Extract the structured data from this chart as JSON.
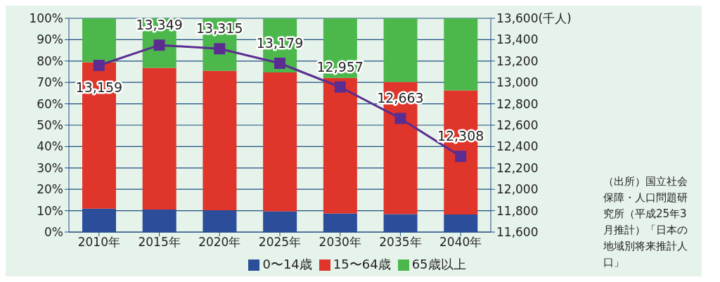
{
  "chart_data": {
    "type": "bar",
    "stacked": true,
    "categories": [
      "2010年",
      "2015年",
      "2020年",
      "2025年",
      "2030年",
      "2035年",
      "2040年"
    ],
    "series": [
      {
        "name": "0〜14歳",
        "color": "#2b4d9a",
        "values": [
          10.9,
          10.5,
          10.2,
          9.7,
          8.7,
          8.4,
          8.2
        ]
      },
      {
        "name": "15〜64歳",
        "color": "#e0352a",
        "values": [
          68.5,
          66.3,
          65.2,
          65.0,
          63.4,
          61.8,
          58.1
        ]
      },
      {
        "name": "65歳以上",
        "color": "#4cb84c",
        "values": [
          20.6,
          23.2,
          24.6,
          25.3,
          27.9,
          29.8,
          33.7
        ]
      },
      {
        "type": "line",
        "axis": "y2",
        "color": "#5b2d91",
        "values": [
          13159,
          13349,
          13315,
          13179,
          12957,
          12663,
          12308
        ],
        "value_labels": [
          "13,159",
          "13,349",
          "13,315",
          "13,179",
          "12,957",
          "12,663",
          "12,308"
        ]
      }
    ],
    "ylim": [
      0,
      100
    ],
    "yticks": [
      {
        "value": 0,
        "label": "0%"
      },
      {
        "value": 10,
        "label": "10%"
      },
      {
        "value": 20,
        "label": "20%"
      },
      {
        "value": 30,
        "label": "30%"
      },
      {
        "value": 40,
        "label": "40%"
      },
      {
        "value": 50,
        "label": "50%"
      },
      {
        "value": 60,
        "label": "60%"
      },
      {
        "value": 70,
        "label": "70%"
      },
      {
        "value": 80,
        "label": "80%"
      },
      {
        "value": 90,
        "label": "90%"
      },
      {
        "value": 100,
        "label": "100%"
      }
    ],
    "y2lim": [
      11600,
      13600
    ],
    "y2ticks": [
      {
        "value": 11600,
        "label": "11,600"
      },
      {
        "value": 11800,
        "label": "11,800"
      },
      {
        "value": 12000,
        "label": "12,000"
      },
      {
        "value": 12200,
        "label": "12,200"
      },
      {
        "value": 12400,
        "label": "12,400"
      },
      {
        "value": 12600,
        "label": "12,600"
      },
      {
        "value": 12800,
        "label": "12,800"
      },
      {
        "value": 13000,
        "label": "13,000"
      },
      {
        "value": 13200,
        "label": "13,200"
      },
      {
        "value": 13400,
        "label": "13,400"
      },
      {
        "value": 13600,
        "label": "13,600(千人)"
      }
    ],
    "grid": "y",
    "legend": "bottom",
    "marker": "square",
    "line_style": "solid",
    "annotations": [
      "（出所）国立社会保障・人口問題研究所（平成25年3月推計）「日本の地域別将来推計人口」"
    ]
  }
}
